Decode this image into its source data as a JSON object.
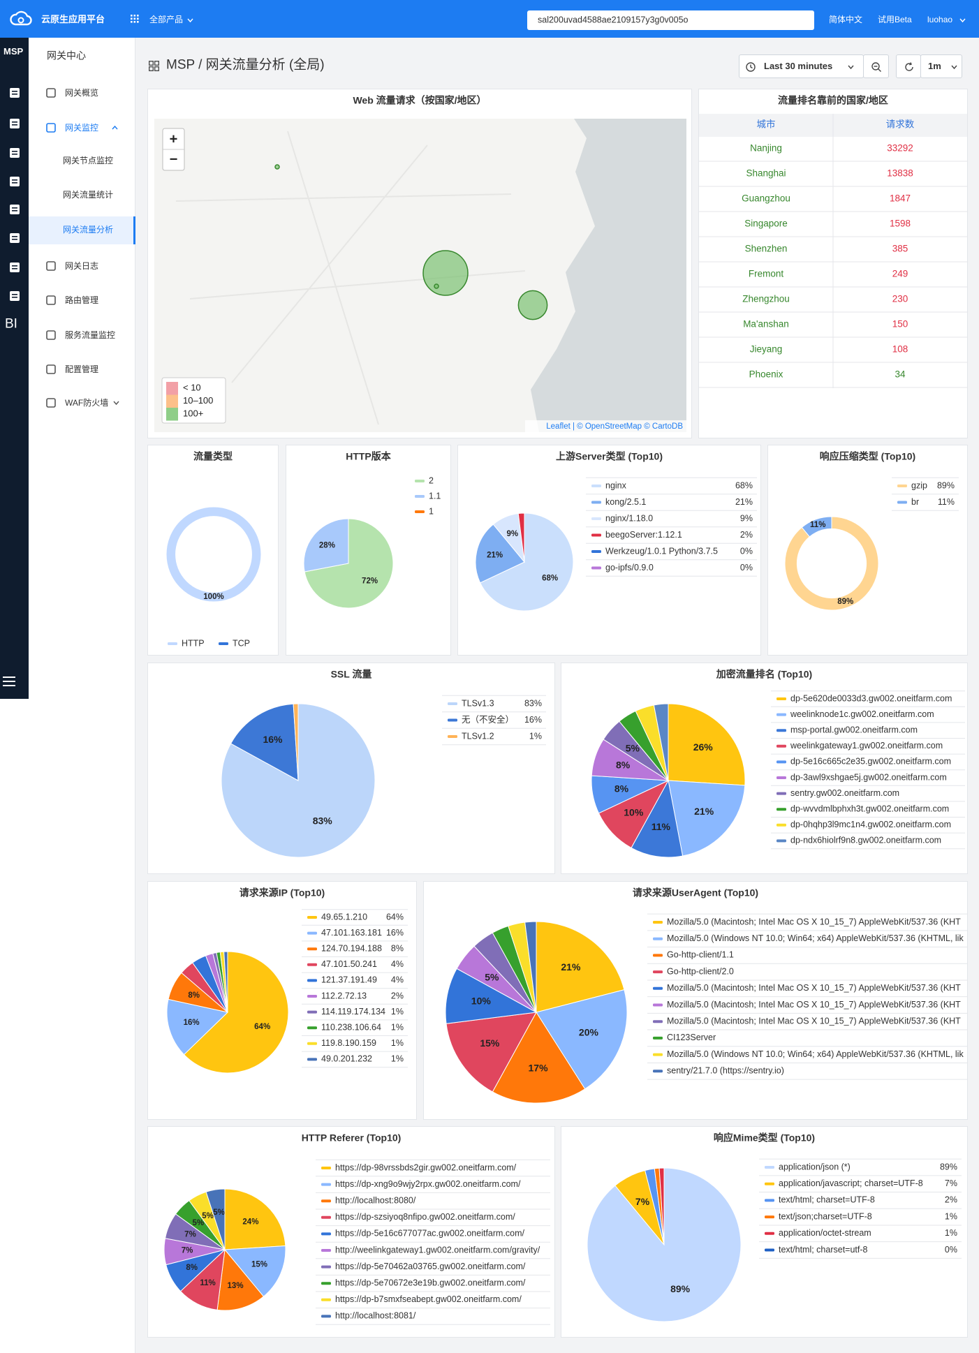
{
  "header": {
    "product": "云原生应用平台",
    "all_products": "全部产品",
    "search": "sal200uvad4588ae2109157y3g0v005o",
    "language": "简体中文",
    "beta": "试用Beta",
    "user": "luohao"
  },
  "sidebar": {
    "brand": "MSP",
    "bi": "BI"
  },
  "nav": {
    "title": "网关中心",
    "items": [
      "网关概览",
      "网关监控",
      "网关节点监控",
      "网关流量统计",
      "网关流量分析",
      "网关日志",
      "路由管理",
      "服务流量监控",
      "配置管理",
      "WAF防火墙"
    ]
  },
  "toolbar": {
    "breadcrumb": "MSP / 网关流量分析 (全局)",
    "time_range": "Last 30 minutes",
    "refresh": "1m"
  },
  "map": {
    "title": "Web 流量请求（按国家/地区）",
    "zoom_in": "+",
    "zoom_out": "−",
    "legend": [
      "< 10",
      "10–100",
      "100+"
    ],
    "legend_colors": [
      "#f2a0a6",
      "#fcc08a",
      "#8fce88"
    ],
    "bubble_color": "#73bf69",
    "attribution": "Leaflet | © OpenStreetMap © CartoDB"
  },
  "table": {
    "title": "流量排名靠前的国家/地区",
    "columns": [
      "城市",
      "请求数"
    ],
    "rows": [
      [
        "Nanjing",
        33292
      ],
      [
        "Shanghai",
        13838
      ],
      [
        "Guangzhou",
        1847
      ],
      [
        "Singapore",
        1598
      ],
      [
        "Shenzhen",
        385
      ],
      [
        "Fremont",
        249
      ],
      [
        "Zhengzhou",
        230
      ],
      [
        "Ma'anshan",
        150
      ],
      [
        "Jieyang",
        108
      ],
      [
        "Phoenix",
        34
      ]
    ],
    "city_color": "#37872d",
    "value_colors": [
      "#e02f44",
      "#e02f44",
      "#e02f44",
      "#e02f44",
      "#e02f44",
      "#e02f44",
      "#e02f44",
      "#e02f44",
      "#e02f44",
      "#37872d"
    ]
  },
  "chart_data": [
    {
      "type": "pie",
      "donut": true,
      "title": "流量类型",
      "categories": [
        "HTTP",
        "TCP"
      ],
      "values": [
        100,
        0
      ],
      "value_labels": [
        "100%",
        null
      ],
      "colors": [
        "#c0d8ff",
        "#3274d9"
      ]
    },
    {
      "type": "pie",
      "title": "HTTP版本",
      "categories": [
        "2",
        "1.1",
        "1"
      ],
      "values": [
        72,
        28,
        0
      ],
      "value_labels": [
        "72%",
        "28%",
        null
      ],
      "colors": [
        "#b5e3ad",
        "#a8c9fb",
        "#ff780a"
      ]
    },
    {
      "type": "pie",
      "title": "上游Server类型 (Top10)",
      "categories": [
        "nginx",
        "kong/2.5.1",
        "nginx/1.18.0",
        "beegoServer:1.12.1",
        "Werkzeug/1.0.1 Python/3.7.5",
        "go-ipfs/0.9.0"
      ],
      "values": [
        68,
        21,
        9,
        2,
        0,
        0
      ],
      "value_labels": [
        "68%",
        "21%",
        "9%",
        "2%",
        "0%",
        "0%"
      ],
      "colors": [
        "#cadffc",
        "#7eaef2",
        "#d8e6fd",
        "#e02f44",
        "#3274d9",
        "#b877d9"
      ]
    },
    {
      "type": "pie",
      "donut": true,
      "title": "响应压缩类型 (Top10)",
      "categories": [
        "gzip",
        "br"
      ],
      "values": [
        89,
        11
      ],
      "value_labels": [
        "89%",
        "11%"
      ],
      "colors": [
        "#ffd591",
        "#7eaef2"
      ]
    },
    {
      "type": "pie",
      "title": "SSL 流量",
      "categories": [
        "TLSv1.3",
        "无（不安全）",
        "TLSv1.2"
      ],
      "values": [
        83,
        16,
        1
      ],
      "value_labels": [
        "83%",
        "16%",
        "1%"
      ],
      "colors": [
        "#bcd6fa",
        "#3d78d6",
        "#ffb357"
      ]
    },
    {
      "type": "pie",
      "title": "加密流量排名 (Top10)",
      "categories": [
        "dp-5e620de0033d3.gw002.oneitfarm.com",
        "weelinknode1c.gw002.oneitfarm.com",
        "msp-portal.gw002.oneitfarm.com",
        "weelinkgateway1.gw002.oneitfarm.com",
        "dp-5e16c665c2e35.gw002.oneitfarm.com",
        "dp-3awl9xshgae5j.gw002.oneitfarm.com",
        "sentry.gw002.oneitfarm.com",
        "dp-wvvdmlbphxh3t.gw002.oneitfarm.com",
        "dp-0hqhp3l9mc1n4.gw002.oneitfarm.com",
        "dp-ndx6hiolrf9n8.gw002.oneitfarm.com"
      ],
      "values": [
        26,
        21,
        11,
        10,
        8,
        8,
        5,
        4,
        4,
        3
      ],
      "value_labels": [
        "26%",
        "21%",
        "11%",
        "10%",
        "8%",
        "8%",
        "5%",
        null,
        null,
        null
      ],
      "colors": [
        "#ffc510",
        "#8ab8ff",
        "#3c78d8",
        "#e0465e",
        "#5794f2",
        "#b877d9",
        "#806eb7",
        "#37a02d",
        "#fade2a",
        "#5a86c5"
      ]
    },
    {
      "type": "pie",
      "title": "请求来源IP (Top10)",
      "categories": [
        "49.65.1.210",
        "47.101.163.181",
        "124.70.194.188",
        "47.101.50.241",
        "121.37.191.49",
        "112.2.72.13",
        "114.119.174.134",
        "110.238.106.64",
        "119.8.190.159",
        "49.0.201.232"
      ],
      "values": [
        64,
        16,
        8,
        4,
        4,
        2,
        1,
        1,
        1,
        1
      ],
      "value_labels": [
        "64%",
        "16%",
        "8%",
        "4%",
        "4%",
        "2%",
        "1%",
        "1%",
        "1%",
        "1%"
      ],
      "colors": [
        "#ffc510",
        "#8ab8ff",
        "#ff780a",
        "#e0465e",
        "#3274d9",
        "#b877d9",
        "#806eb7",
        "#37a02d",
        "#fade2a",
        "#4873b8"
      ]
    },
    {
      "type": "pie",
      "title": "请求来源UserAgent (Top10)",
      "categories": [
        "Mozilla/5.0 (Macintosh; Intel Mac OS X 10_15_7) AppleWebKit/537.36 (KHT",
        "Mozilla/5.0 (Windows NT 10.0; Win64; x64) AppleWebKit/537.36 (KHTML, lik",
        "Go-http-client/1.1",
        "Go-http-client/2.0",
        "Mozilla/5.0 (Macintosh; Intel Mac OS X 10_15_7) AppleWebKit/537.36 (KHT",
        "Mozilla/5.0 (Macintosh; Intel Mac OS X 10_15_7) AppleWebKit/537.36 (KHT",
        "Mozilla/5.0 (Macintosh; Intel Mac OS X 10_15_7) AppleWebKit/537.36 (KHT",
        "CI123Server",
        "Mozilla/5.0 (Windows NT 10.0; Win64; x64) AppleWebKit/537.36 (KHTML, lik",
        "sentry/21.7.0 (https://sentry.io)"
      ],
      "values": [
        21,
        20,
        17,
        15,
        10,
        5,
        4,
        3,
        3,
        2
      ],
      "value_labels": [
        "21%",
        "20%",
        "17%",
        "15%",
        "10%",
        "5%",
        null,
        null,
        null,
        null
      ],
      "colors": [
        "#ffc510",
        "#8ab8ff",
        "#ff780a",
        "#e0465e",
        "#3274d9",
        "#b877d9",
        "#806eb7",
        "#37a02d",
        "#fade2a",
        "#4873b8"
      ]
    },
    {
      "type": "pie",
      "title": "HTTP Referer (Top10)",
      "categories": [
        "https://dp-98vrssbds2gir.gw002.oneitfarm.com/",
        "https://dp-xng9o9wjy2rpx.gw002.oneitfarm.com/",
        "http://localhost:8080/",
        "https://dp-szsiyoq8nfipo.gw002.oneitfarm.com/",
        "https://dp-5e16c677077ac.gw002.oneitfarm.com/",
        "http://weelinkgateway1.gw002.oneitfarm.com/gravity/",
        "https://dp-5e70462a03765.gw002.oneitfarm.com/",
        "https://dp-5e70672e3e19b.gw002.oneitfarm.com/",
        "https://dp-b7smxfseabept.gw002.oneitfarm.com/",
        "http://localhost:8081/"
      ],
      "values": [
        24,
        15,
        13,
        11,
        8,
        7,
        7,
        5,
        5,
        5
      ],
      "value_labels": [
        "24%",
        "15%",
        "13%",
        "11%",
        "8%",
        "7%",
        "7%",
        "5%",
        "5%",
        "5%"
      ],
      "colors": [
        "#ffc510",
        "#8ab8ff",
        "#ff780a",
        "#e0465e",
        "#3274d9",
        "#b877d9",
        "#806eb7",
        "#37a02d",
        "#fade2a",
        "#4873b8"
      ]
    },
    {
      "type": "pie",
      "title": "响应Mime类型 (Top10)",
      "categories": [
        "application/json (*)",
        "application/javascript; charset=UTF-8",
        "text/html; charset=UTF-8",
        "text/json;charset=UTF-8",
        "application/octet-stream",
        "text/html; charset=utf-8"
      ],
      "values": [
        89,
        7,
        2,
        1,
        1,
        0
      ],
      "value_labels": [
        "89%",
        "7%",
        "2%",
        "1%",
        "1%",
        "0%"
      ],
      "colors": [
        "#c0d8ff",
        "#ffc510",
        "#5794f2",
        "#ff780a",
        "#e02f44",
        "#1f60c4"
      ]
    }
  ]
}
